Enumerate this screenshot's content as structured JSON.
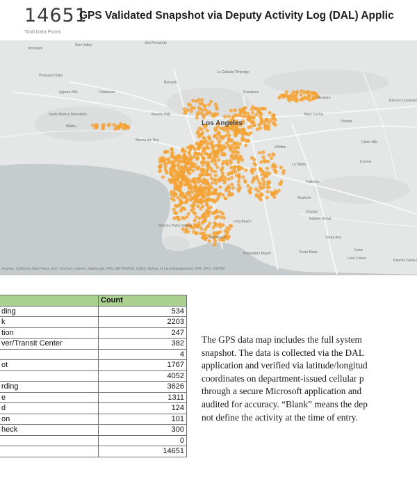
{
  "header": {
    "total": "14651",
    "title": "GPS Validated Snapshot via Deputy Activity Log (DAL) Applic",
    "subtitle": "Total Data Points"
  },
  "map": {
    "places": [
      {
        "text": "Moorpark",
        "kind": "small"
      },
      {
        "text": "Simi Valley",
        "kind": "small"
      },
      {
        "text": "San Fernando",
        "kind": "small"
      },
      {
        "text": "Thousand Oaks",
        "kind": "small"
      },
      {
        "text": "Agoura Hills",
        "kind": "small"
      },
      {
        "text": "Calabasas",
        "kind": "small"
      },
      {
        "text": "Burbank",
        "kind": "small"
      },
      {
        "text": "La Cañada Flintridge",
        "kind": "small"
      },
      {
        "text": "Pasadena",
        "kind": "small"
      },
      {
        "text": "Glendora",
        "kind": "small"
      },
      {
        "text": "Rancho Cucamonga",
        "kind": "small"
      },
      {
        "text": "Santa Monica Mountains",
        "kind": "small"
      },
      {
        "text": "Beverly Hills",
        "kind": "small"
      },
      {
        "text": "Los Angeles",
        "kind": "big"
      },
      {
        "text": "West Covina",
        "kind": "small"
      },
      {
        "text": "Ontario",
        "kind": "small"
      },
      {
        "text": "Chino Hills",
        "kind": "small"
      },
      {
        "text": "Malibu",
        "kind": "small"
      },
      {
        "text": "Marina del Rey",
        "kind": "small"
      },
      {
        "text": "Whittier",
        "kind": "small"
      },
      {
        "text": "La Habra",
        "kind": "small"
      },
      {
        "text": "Corona",
        "kind": "small"
      },
      {
        "text": "Fullerton",
        "kind": "small"
      },
      {
        "text": "Anaheim",
        "kind": "small"
      },
      {
        "text": "Orange",
        "kind": "small"
      },
      {
        "text": "Garden Grove",
        "kind": "small"
      },
      {
        "text": "Long Beach",
        "kind": "small"
      },
      {
        "text": "Rancho Palos Verdes",
        "kind": "small"
      },
      {
        "text": "Santa Ana",
        "kind": "small"
      },
      {
        "text": "Irvine",
        "kind": "small"
      },
      {
        "text": "Huntington Beach",
        "kind": "small"
      },
      {
        "text": "Costa Mesa",
        "kind": "small"
      },
      {
        "text": "Lake Forest",
        "kind": "small"
      },
      {
        "text": "Rancho Santa Margarita",
        "kind": "small"
      },
      {
        "text": "Seal Beach",
        "kind": "small"
      }
    ],
    "dot_color": "#f4a235",
    "attribution": "Angeles, California State Parks, Esri, TomTom, Garmin, SafeGraph, FAO, METI/NASA, USGS, Bureau of Land Management, EPA, NPS, USFWS"
  },
  "table": {
    "header_left": "",
    "header_right": "Count",
    "header_color": "#a9d08e",
    "rows": [
      {
        "label": "ding",
        "count": "534"
      },
      {
        "label": "k",
        "count": "2203"
      },
      {
        "label": "tion",
        "count": "247"
      },
      {
        "label": "ver/Transit Center",
        "count": "382"
      },
      {
        "label": "",
        "count": "4"
      },
      {
        "label": "ot",
        "count": "1767"
      },
      {
        "label": "",
        "count": "4052"
      },
      {
        "label": "rding",
        "count": "3626"
      },
      {
        "label": "e",
        "count": "1311"
      },
      {
        "label": "d",
        "count": "124"
      },
      {
        "label": "on",
        "count": "101"
      },
      {
        "label": "heck",
        "count": "300"
      },
      {
        "label": "",
        "count": "0"
      },
      {
        "label": "",
        "count": "14651"
      }
    ]
  },
  "description": {
    "lines": [
      "The GPS data map includes the full system",
      "snapshot. The data is collected via the DAL",
      "application and verified via latitude/longitud",
      "coordinates on department-issued cellular p",
      "through a secure Microsoft application and",
      "audited for accuracy. “Blank” means the dep",
      "not define the activity at the time of entry."
    ]
  }
}
